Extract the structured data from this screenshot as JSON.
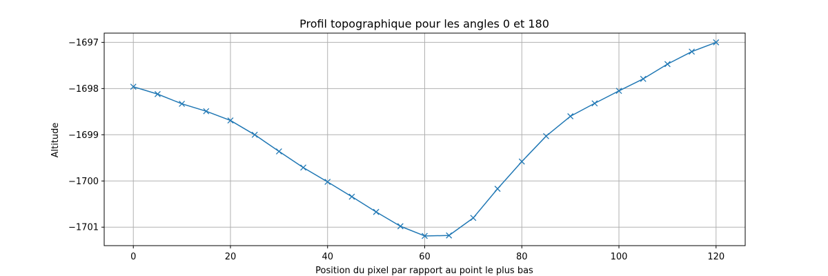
{
  "chart_data": {
    "type": "line",
    "title": "Profil topographique pour les angles 0 et 180",
    "xlabel": "Position du pixel par rapport au point le plus bas",
    "ylabel": "Altitude",
    "xlim": [
      -6,
      126
    ],
    "ylim": [
      -1701.4,
      -1696.8
    ],
    "x_ticks": [
      0,
      20,
      40,
      60,
      80,
      100,
      120
    ],
    "y_ticks": [
      -1697,
      -1698,
      -1699,
      -1700,
      -1701
    ],
    "y_tick_labels": [
      "−1697",
      "−1698",
      "−1699",
      "−1700",
      "−1701"
    ],
    "grid": true,
    "marker": "x",
    "color": "#1f77b4",
    "series": [
      {
        "x": [
          0,
          5,
          10,
          15,
          20,
          25,
          30,
          35,
          40,
          45,
          50,
          55,
          60,
          65,
          70,
          75,
          80,
          85,
          90,
          95,
          100,
          105,
          110,
          115,
          120
        ],
        "values": [
          -1697.96,
          -1698.12,
          -1698.33,
          -1698.49,
          -1698.69,
          -1699.0,
          -1699.36,
          -1699.71,
          -1700.02,
          -1700.34,
          -1700.67,
          -1700.98,
          -1701.19,
          -1701.18,
          -1700.8,
          -1700.17,
          -1699.58,
          -1699.03,
          -1698.6,
          -1698.32,
          -1698.05,
          -1697.79,
          -1697.47,
          -1697.2,
          -1697.0
        ]
      }
    ]
  }
}
